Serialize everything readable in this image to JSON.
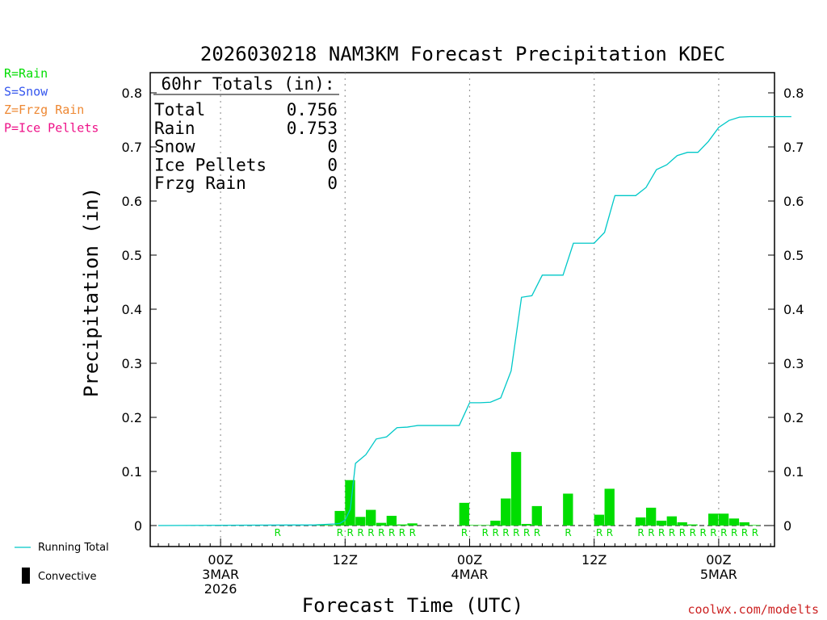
{
  "chart_data": {
    "type": "bar+line",
    "title": "2026030218 NAM3KM Forecast Precipitation KDEC",
    "xlabel": "Forecast Time (UTC)",
    "ylabel": "Precipitation (in)",
    "ylim": [
      0,
      0.85
    ],
    "y_ticks": [
      "0",
      "0.1",
      "0.2",
      "0.3",
      "0.4",
      "0.5",
      "0.6",
      "0.7",
      "0.8"
    ],
    "y_tick_values": [
      0,
      0.1,
      0.2,
      0.3,
      0.4,
      0.5,
      0.6,
      0.7,
      0.8
    ],
    "x_unit": "hours after 2026-03-02 18Z",
    "xlim": [
      0,
      61
    ],
    "x_ticks": [
      {
        "hour": 6,
        "lines": [
          "00Z",
          "3MAR",
          "2026"
        ]
      },
      {
        "hour": 18,
        "lines": [
          "12Z"
        ]
      },
      {
        "hour": 30,
        "lines": [
          "00Z",
          "4MAR"
        ]
      },
      {
        "hour": 42,
        "lines": [
          "12Z"
        ]
      },
      {
        "hour": 54,
        "lines": [
          "00Z",
          "5MAR"
        ]
      }
    ],
    "hourly_precip": {
      "name": "Convective",
      "color": "#00dd00",
      "hours": [
        13,
        14,
        15,
        16,
        17,
        18,
        19,
        20,
        21,
        22,
        23,
        24,
        25,
        26,
        27,
        28,
        29,
        30,
        31,
        32,
        33,
        34,
        35,
        36,
        37,
        38,
        39,
        40,
        41,
        42,
        43,
        44,
        45,
        46,
        47,
        48,
        49,
        50,
        51,
        52,
        53,
        54,
        55,
        56,
        57,
        58,
        59,
        60
      ],
      "values": [
        0.001,
        0.001,
        0.001,
        0.001,
        0.001,
        0.027,
        0.084,
        0.016,
        0.029,
        0.005,
        0.018,
        0.002,
        0.004,
        0,
        0,
        0,
        0,
        0.042,
        0.001,
        0.001,
        0.009,
        0.05,
        0.136,
        0.003,
        0.036,
        0,
        0,
        0.059,
        0,
        0,
        0.02,
        0.068,
        0,
        0,
        0.015,
        0.033,
        0.009,
        0.017,
        0.006,
        0.002,
        0,
        0.022,
        0.022,
        0.013,
        0.006,
        0.001,
        0,
        0
      ]
    },
    "running_total": {
      "name": "Running Total",
      "color": "#00c8c8",
      "x": [
        0,
        13,
        14,
        15,
        16,
        17,
        17.5,
        18,
        18.5,
        19,
        20,
        21,
        22,
        23,
        24,
        25,
        26,
        27,
        28,
        29,
        30,
        31,
        32,
        33,
        34,
        35,
        36,
        37,
        38,
        39,
        40,
        41,
        42,
        43,
        44,
        45,
        46,
        47,
        48,
        49,
        50,
        51,
        52,
        53,
        54,
        55,
        56,
        57,
        58,
        59,
        60,
        61
      ],
      "y": [
        0,
        0.001,
        0.001,
        0.001,
        0.002,
        0.003,
        0.004,
        0.01,
        0.03,
        0.115,
        0.131,
        0.16,
        0.164,
        0.181,
        0.182,
        0.185,
        0.185,
        0.185,
        0.185,
        0.185,
        0.227,
        0.227,
        0.228,
        0.236,
        0.286,
        0.422,
        0.425,
        0.463,
        0.463,
        0.463,
        0.522,
        0.522,
        0.522,
        0.542,
        0.61,
        0.61,
        0.61,
        0.625,
        0.658,
        0.667,
        0.684,
        0.69,
        0.69,
        0.71,
        0.736,
        0.749,
        0.755,
        0.756,
        0.756,
        0.756,
        0.756,
        0.756
      ]
    },
    "precip_type_marks": [
      {
        "hour": 12,
        "type": "R"
      },
      {
        "hour": 18,
        "type": "R"
      },
      {
        "hour": 19,
        "type": "R"
      },
      {
        "hour": 20,
        "type": "R"
      },
      {
        "hour": 21,
        "type": "R"
      },
      {
        "hour": 22,
        "type": "R"
      },
      {
        "hour": 23,
        "type": "R"
      },
      {
        "hour": 24,
        "type": "R"
      },
      {
        "hour": 25,
        "type": "R"
      },
      {
        "hour": 30,
        "type": "R"
      },
      {
        "hour": 32,
        "type": "R"
      },
      {
        "hour": 33,
        "type": "R"
      },
      {
        "hour": 34,
        "type": "R"
      },
      {
        "hour": 35,
        "type": "R"
      },
      {
        "hour": 36,
        "type": "R"
      },
      {
        "hour": 37,
        "type": "R"
      },
      {
        "hour": 40,
        "type": "R"
      },
      {
        "hour": 43,
        "type": "R"
      },
      {
        "hour": 44,
        "type": "R"
      },
      {
        "hour": 47,
        "type": "R"
      },
      {
        "hour": 48,
        "type": "R"
      },
      {
        "hour": 49,
        "type": "R"
      },
      {
        "hour": 50,
        "type": "R"
      },
      {
        "hour": 51,
        "type": "R"
      },
      {
        "hour": 52,
        "type": "R"
      },
      {
        "hour": 53,
        "type": "R"
      },
      {
        "hour": 54,
        "type": "R"
      },
      {
        "hour": 55,
        "type": "R"
      },
      {
        "hour": 56,
        "type": "R"
      },
      {
        "hour": 57,
        "type": "R"
      },
      {
        "hour": 58,
        "type": "R"
      }
    ],
    "totals_box": {
      "heading": "60hr Totals (in):",
      "rows": [
        {
          "label": "Total",
          "value": "0.756"
        },
        {
          "label": "Rain",
          "value": "0.753"
        },
        {
          "label": "Snow",
          "value": "0"
        },
        {
          "label": "Ice Pellets",
          "value": "0"
        },
        {
          "label": "Frzg Rain",
          "value": "0"
        }
      ]
    },
    "type_legend": [
      {
        "text": "R=Rain",
        "color": "#00dd00"
      },
      {
        "text": "S=Snow",
        "color": "#3355ee"
      },
      {
        "text": "Z=Frzg Rain",
        "color": "#ee8833"
      },
      {
        "text": "P=Ice Pellets",
        "color": "#ee1188"
      }
    ],
    "series_legend": {
      "running_total": "Running Total",
      "convective": "Convective"
    },
    "credit": {
      "text": "coolwx.com/modelts",
      "color": "#cc2222"
    }
  }
}
